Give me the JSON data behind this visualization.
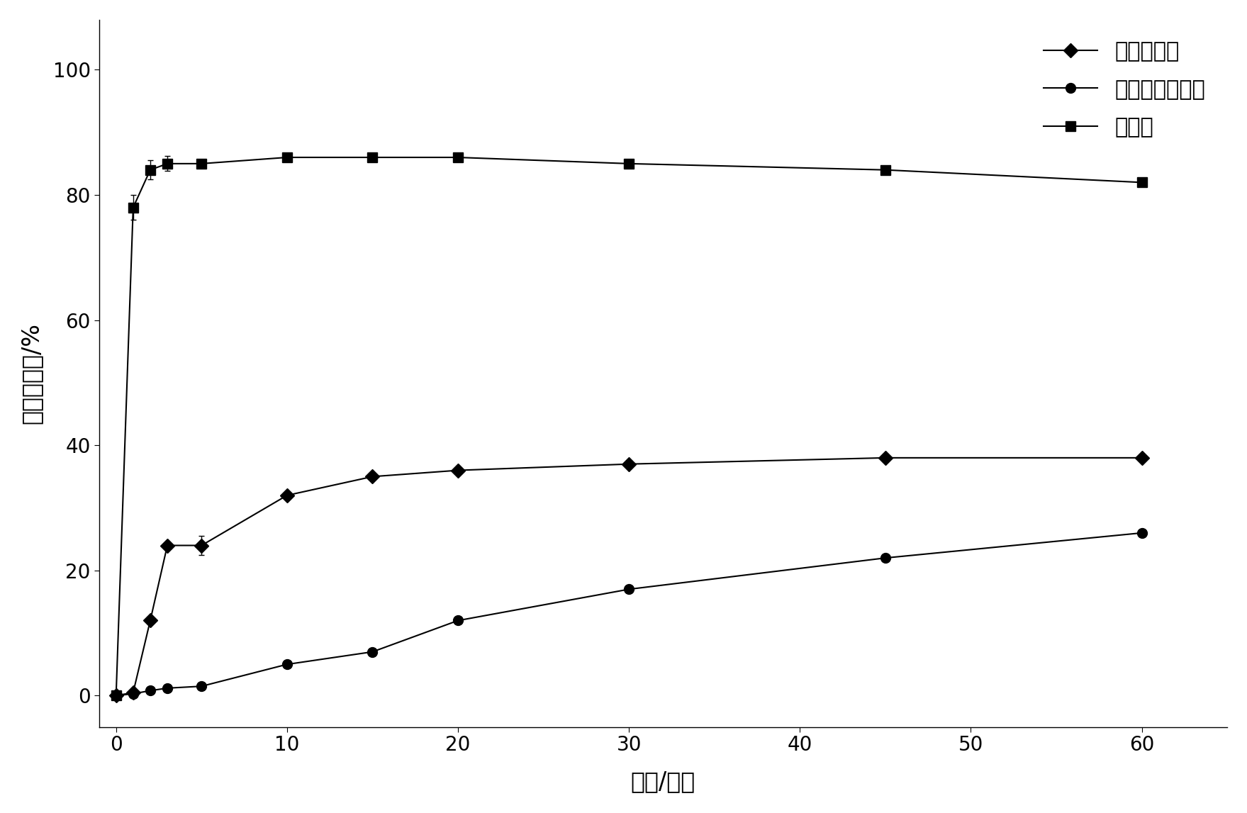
{
  "series": [
    {
      "key": "物理混合物",
      "x": [
        0,
        1,
        2,
        3,
        5,
        10,
        15,
        20,
        30,
        45,
        60
      ],
      "y": [
        0,
        0.5,
        12,
        24,
        24,
        32,
        35,
        36,
        37,
        38,
        38
      ],
      "marker": "D",
      "label": "物理混合物"
    },
    {
      "key": "尼美舒利原料药",
      "x": [
        0,
        1,
        2,
        3,
        5,
        10,
        15,
        20,
        30,
        45,
        60
      ],
      "y": [
        0,
        0.3,
        0.8,
        1.2,
        1.5,
        5,
        7,
        12,
        17,
        22,
        26
      ],
      "marker": "o",
      "label": "尼美舒利原料药"
    },
    {
      "key": "挤出物",
      "x": [
        0,
        1,
        2,
        3,
        5,
        10,
        15,
        20,
        30,
        45,
        60
      ],
      "y": [
        0,
        78,
        84,
        85,
        85,
        86,
        86,
        86,
        85,
        84,
        82
      ],
      "marker": "s",
      "label": "挤出物"
    }
  ],
  "xlabel": "时间/分钟",
  "ylabel": "溶出百分数/%",
  "xlim": [
    -1,
    65
  ],
  "ylim": [
    -5,
    108
  ],
  "xticks": [
    0,
    10,
    20,
    30,
    40,
    50,
    60
  ],
  "yticks": [
    0,
    20,
    40,
    60,
    80,
    100
  ],
  "line_color": "#000000",
  "marker_color": "#000000",
  "marker_size": 10,
  "linewidth": 1.5,
  "font_size": 22,
  "tick_font_size": 20,
  "label_font_size": 24
}
